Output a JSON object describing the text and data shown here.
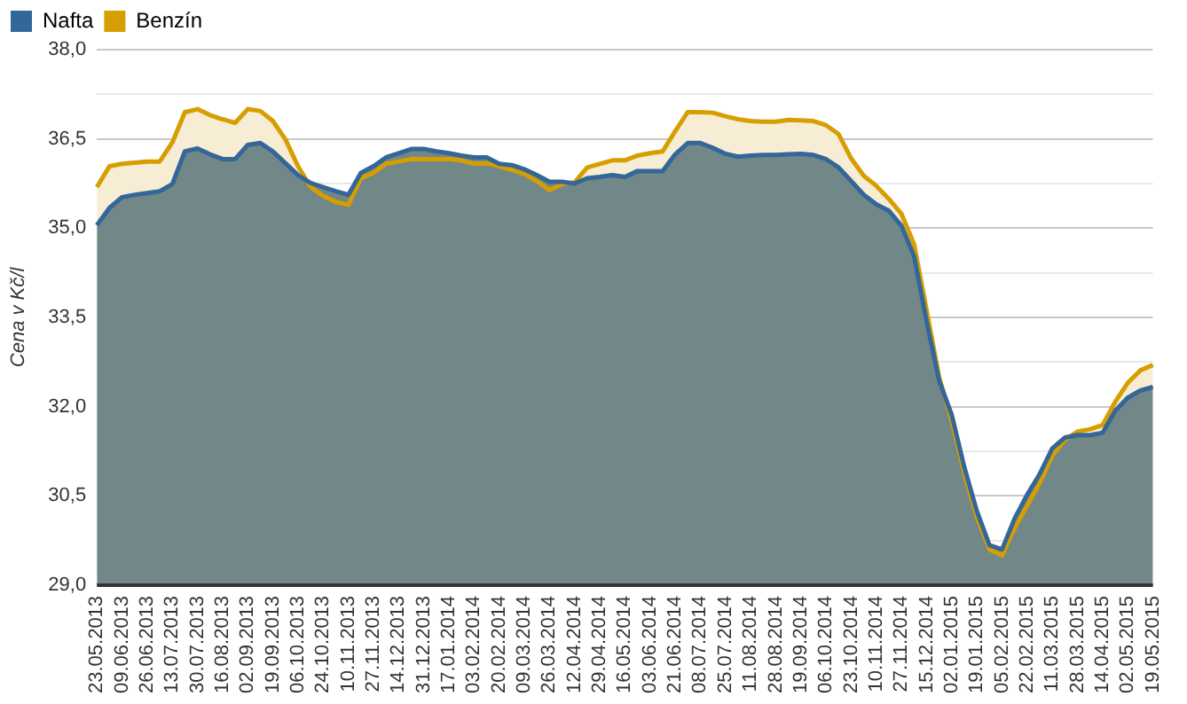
{
  "chart_data": {
    "type": "area",
    "ylabel": "Cena v Kč/l",
    "legend": "top left",
    "grid": "y",
    "marker": "none",
    "line_style": "solid",
    "categories": [
      "23.05.2013",
      null,
      "09.06.2013",
      null,
      "26.06.2013",
      null,
      "13.07.2013",
      null,
      "30.07.2013",
      null,
      "16.08.2013",
      null,
      "02.09.2013",
      null,
      "19.09.2013",
      null,
      "06.10.2013",
      null,
      "24.10.2013",
      null,
      "10.11.2013",
      null,
      "27.11.2013",
      null,
      "14.12.2013",
      null,
      "31.12.2013",
      null,
      "17.01.2014",
      null,
      "03.02.2014",
      null,
      "20.02.2014",
      null,
      "09.03.2014",
      null,
      "26.03.2014",
      null,
      "12.04.2014",
      null,
      "29.04.2014",
      null,
      "16.05.2014",
      null,
      "03.06.2014",
      null,
      "21.06.2014",
      null,
      "08.07.2014",
      null,
      "25.07.2014",
      null,
      "11.08.2014",
      null,
      "28.08.2014",
      null,
      "19.09.2014",
      null,
      "06.10.2014",
      null,
      "23.10.2014",
      null,
      "10.11.2014",
      null,
      "27.11.2014",
      null,
      "15.12.2014",
      null,
      "02.01.2015",
      null,
      "19.01.2015",
      null,
      "05.02.2015",
      null,
      "22.02.2015",
      null,
      "11.03.2015",
      null,
      "28.03.2015",
      null,
      "14.04.2015",
      null,
      "02.05.2015",
      null,
      "19.05.2015"
    ],
    "ylim": [
      29,
      38
    ],
    "yticks": [
      {
        "value": 29,
        "label": "29,0"
      },
      {
        "value": 29.75,
        "label": null
      },
      {
        "value": 30.5,
        "label": "30,5"
      },
      {
        "value": 31.25,
        "label": null
      },
      {
        "value": 32,
        "label": "32,0"
      },
      {
        "value": 32.75,
        "label": null
      },
      {
        "value": 33.5,
        "label": "33,5"
      },
      {
        "value": 34.25,
        "label": null
      },
      {
        "value": 35,
        "label": "35,0"
      },
      {
        "value": 35.75,
        "label": null
      },
      {
        "value": 36.5,
        "label": "36,5"
      },
      {
        "value": 37.25,
        "label": null
      },
      {
        "value": 38,
        "label": "38,0"
      }
    ],
    "series": [
      {
        "name": "Nafta",
        "color": "#336699",
        "values": [
          35.05,
          35.34,
          35.52,
          35.56,
          35.59,
          35.62,
          35.74,
          36.29,
          36.34,
          36.24,
          36.16,
          36.16,
          36.4,
          36.43,
          36.29,
          36.09,
          35.89,
          35.76,
          35.69,
          35.62,
          35.56,
          35.93,
          36.04,
          36.19,
          36.26,
          36.33,
          36.33,
          36.29,
          36.26,
          36.22,
          36.19,
          36.19,
          36.08,
          36.06,
          35.99,
          35.89,
          35.78,
          35.78,
          35.75,
          35.84,
          35.86,
          35.89,
          35.86,
          35.96,
          35.96,
          35.96,
          36.24,
          36.43,
          36.43,
          36.35,
          36.25,
          36.2,
          36.22,
          36.23,
          36.23,
          36.24,
          36.25,
          36.23,
          36.16,
          36.02,
          35.79,
          35.56,
          35.4,
          35.29,
          35.04,
          34.53,
          33.43,
          32.43,
          31.86,
          30.98,
          30.24,
          29.67,
          29.6,
          30.12,
          30.52,
          30.87,
          31.3,
          31.48,
          31.52,
          31.52,
          31.56,
          31.93,
          32.15,
          32.27,
          32.33
        ]
      },
      {
        "name": "Benzín",
        "color": "#d69e00",
        "values": [
          35.69,
          36.04,
          36.08,
          36.1,
          36.12,
          36.12,
          36.44,
          36.95,
          37.0,
          36.9,
          36.83,
          36.77,
          37.0,
          36.97,
          36.8,
          36.49,
          36.04,
          35.69,
          35.54,
          35.44,
          35.39,
          35.84,
          35.93,
          36.08,
          36.12,
          36.16,
          36.16,
          36.16,
          36.16,
          36.14,
          36.08,
          36.09,
          36.04,
          35.98,
          35.91,
          35.79,
          35.64,
          35.74,
          35.77,
          36.02,
          36.08,
          36.14,
          36.14,
          36.22,
          36.26,
          36.29,
          36.63,
          36.95,
          36.95,
          36.94,
          36.88,
          36.83,
          36.8,
          36.79,
          36.79,
          36.82,
          36.81,
          36.8,
          36.73,
          36.58,
          36.17,
          35.88,
          35.71,
          35.49,
          35.24,
          34.73,
          33.62,
          32.49,
          31.76,
          30.88,
          30.14,
          29.6,
          29.5,
          29.96,
          30.34,
          30.72,
          31.18,
          31.44,
          31.58,
          31.62,
          31.69,
          32.08,
          32.4,
          32.61,
          32.7
        ]
      }
    ]
  }
}
